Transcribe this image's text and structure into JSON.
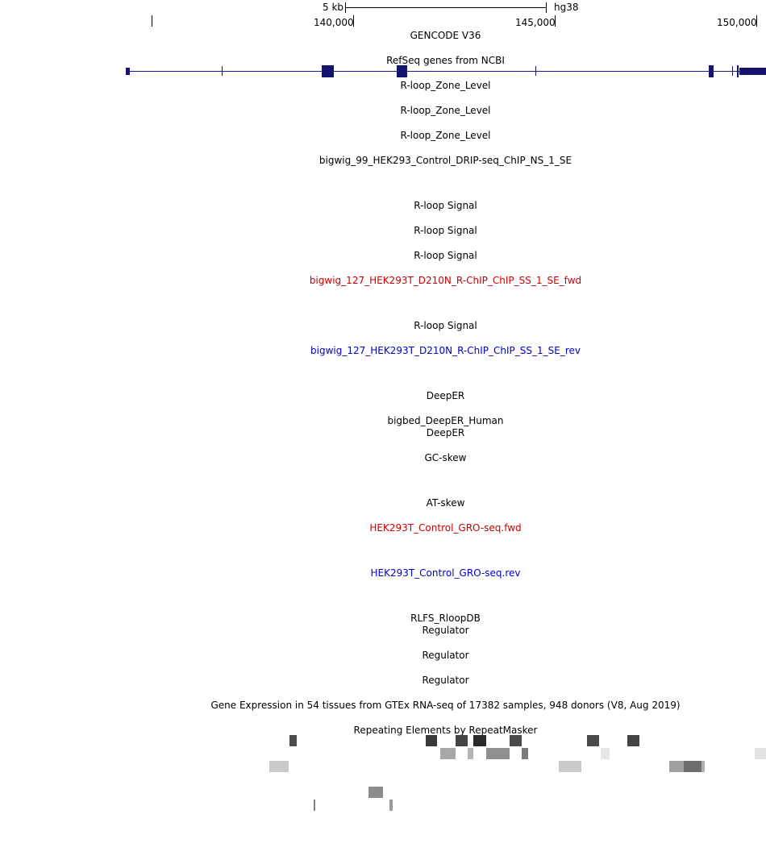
{
  "ruler": {
    "scale_label": "5 kb",
    "assembly": "hg38",
    "positions": [
      "140,000",
      "145,000",
      "150,000"
    ]
  },
  "tracks": [
    {
      "label": "GENCODE V36"
    },
    {
      "label": "RefSeq genes from NCBI"
    },
    {
      "label": "R-loop_Zone_Level"
    },
    {
      "label": "R-loop_Zone_Level"
    },
    {
      "label": "R-loop_Zone_Level"
    },
    {
      "label": "bigwig_99_HEK293_Control_DRIP-seq_ChIP_NS_1_SE"
    },
    {
      "label": "R-loop Signal"
    },
    {
      "label": "R-loop Signal"
    },
    {
      "label": "R-loop Signal"
    },
    {
      "label": "bigwig_127_HEK293T_D210N_R-ChIP_ChIP_SS_1_SE_fwd",
      "color": "#cc0000"
    },
    {
      "label": "R-loop Signal"
    },
    {
      "label": "bigwig_127_HEK293T_D210N_R-ChIP_ChIP_SS_1_SE_rev",
      "color": "#0000cc"
    },
    {
      "label": "DeepER"
    },
    {
      "label": "bigbed_DeepER_Human"
    },
    {
      "label": "DeepER"
    },
    {
      "label": "GC-skew"
    },
    {
      "label": "AT-skew"
    },
    {
      "label": "HEK293T_Control_GRO-seq.fwd",
      "color": "#cc0000"
    },
    {
      "label": "HEK293T_Control_GRO-seq.rev",
      "color": "#0000cc"
    },
    {
      "label": "RLFS_RloopDB"
    },
    {
      "label": "Regulator"
    },
    {
      "label": "Regulator"
    },
    {
      "label": "Regulator"
    },
    {
      "label": "Gene Expression in 54 tissues from GTEx RNA-seq of 17382 samples, 948 donors (V8, Aug 2019)"
    },
    {
      "label": "Repeating Elements by RepeatMasker"
    }
  ],
  "colors": {
    "gene": "#14146e",
    "fwd": "#cc0000",
    "rev": "#0000cc"
  }
}
